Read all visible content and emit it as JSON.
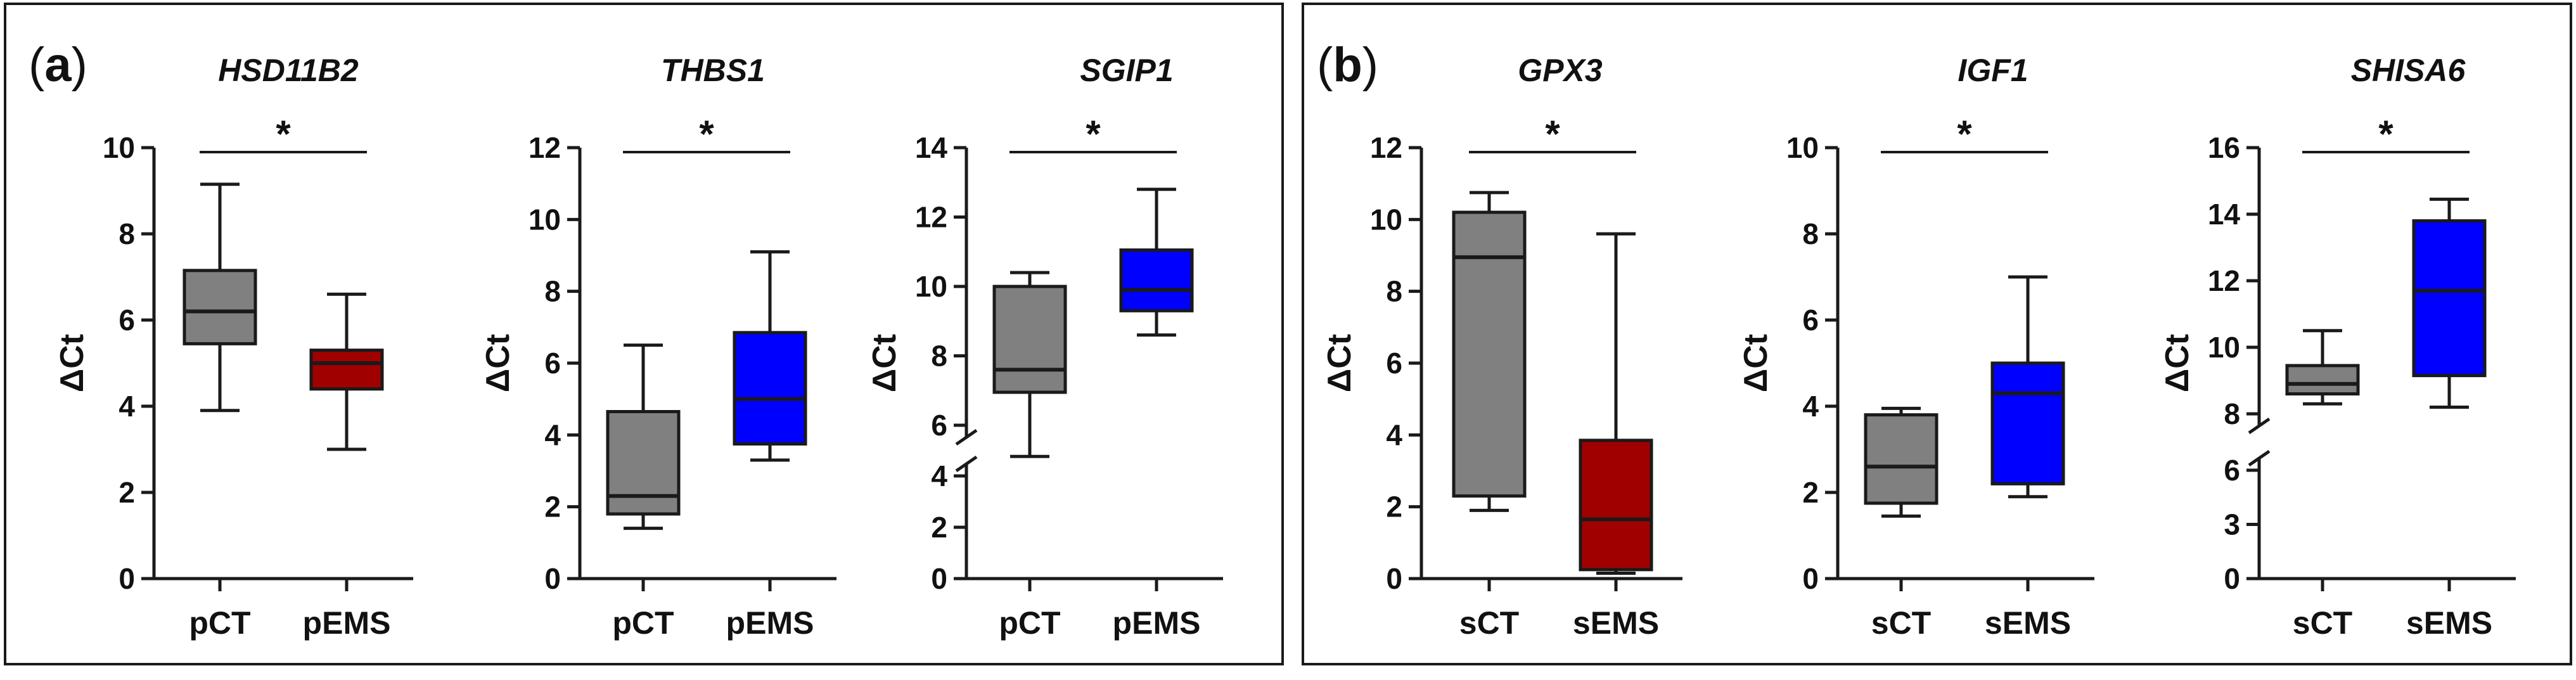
{
  "colors": {
    "control": "#808080",
    "pEMS": "#A00000",
    "sEMS": "#0000FF",
    "stroke": "#1a1a1a"
  },
  "panels": [
    {
      "label": "(a)",
      "bracket_left": "(",
      "letter": "a",
      "bracket_right": ")"
    },
    {
      "label": "(b)",
      "bracket_left": "(",
      "letter": "b",
      "bracket_right": ")"
    }
  ],
  "chart_data": [
    {
      "type": "box",
      "title": "HSD11B2",
      "ylabel": "ΔCt",
      "categories": [
        "pCT",
        "pEMS"
      ],
      "ylim": [
        0,
        10
      ],
      "yticks": [
        0,
        2,
        4,
        6,
        8,
        10
      ],
      "axis_break": false,
      "boxes": [
        {
          "name": "pCT",
          "color": "#808080",
          "min": 3.9,
          "q1": 5.45,
          "median": 6.2,
          "q3": 7.15,
          "max": 9.15
        },
        {
          "name": "pEMS",
          "color": "#A00000",
          "min": 3.0,
          "q1": 4.4,
          "median": 5.0,
          "q3": 5.3,
          "max": 6.6
        }
      ],
      "significance": "*"
    },
    {
      "type": "box",
      "title": "THBS1",
      "ylabel": "ΔCt",
      "categories": [
        "pCT",
        "pEMS"
      ],
      "ylim": [
        0,
        12
      ],
      "yticks": [
        0,
        2,
        4,
        6,
        8,
        10,
        12
      ],
      "axis_break": false,
      "boxes": [
        {
          "name": "pCT",
          "color": "#808080",
          "min": 1.4,
          "q1": 1.8,
          "median": 2.3,
          "q3": 4.65,
          "max": 6.5
        },
        {
          "name": "pEMS",
          "color": "#0000FF",
          "min": 3.3,
          "q1": 3.75,
          "median": 5.0,
          "q3": 6.85,
          "max": 9.1
        }
      ],
      "significance": "*"
    },
    {
      "type": "box",
      "title": "SGIP1",
      "ylabel": "ΔCt",
      "categories": [
        "pCT",
        "pEMS"
      ],
      "ylim": [
        0,
        14
      ],
      "yticks": [
        0,
        2,
        4,
        6,
        8,
        10,
        12,
        14
      ],
      "axis_break": true,
      "boxes": [
        {
          "name": "pCT",
          "color": "#808080",
          "min": 5.1,
          "q1": 6.95,
          "median": 7.6,
          "q3": 10.0,
          "max": 10.4
        },
        {
          "name": "pEMS",
          "color": "#0000FF",
          "min": 8.6,
          "q1": 9.3,
          "median": 9.9,
          "q3": 11.05,
          "max": 12.8
        }
      ],
      "significance": "*"
    },
    {
      "type": "box",
      "title": "GPX3",
      "ylabel": "ΔCt",
      "categories": [
        "sCT",
        "sEMS"
      ],
      "ylim": [
        0,
        12
      ],
      "yticks": [
        0,
        2,
        4,
        6,
        8,
        10,
        12
      ],
      "axis_break": false,
      "boxes": [
        {
          "name": "sCT",
          "color": "#808080",
          "min": 1.9,
          "q1": 2.3,
          "median": 8.95,
          "q3": 10.2,
          "max": 10.75
        },
        {
          "name": "sEMS",
          "color": "#A00000",
          "min": 0.15,
          "q1": 0.25,
          "median": 1.65,
          "q3": 3.85,
          "max": 9.6
        }
      ],
      "significance": "*"
    },
    {
      "type": "box",
      "title": "IGF1",
      "ylabel": "ΔCt",
      "categories": [
        "sCT",
        "sEMS"
      ],
      "ylim": [
        0,
        10
      ],
      "yticks": [
        0,
        2,
        4,
        6,
        8,
        10
      ],
      "axis_break": false,
      "boxes": [
        {
          "name": "sCT",
          "color": "#808080",
          "min": 1.45,
          "q1": 1.75,
          "median": 2.6,
          "q3": 3.8,
          "max": 3.95
        },
        {
          "name": "sEMS",
          "color": "#0000FF",
          "min": 1.9,
          "q1": 2.2,
          "median": 4.3,
          "q3": 5.0,
          "max": 7.0
        }
      ],
      "significance": "*"
    },
    {
      "type": "box",
      "title": "SHISA6",
      "ylabel": "ΔCt",
      "categories": [
        "sCT",
        "sEMS"
      ],
      "ylim": [
        0,
        16
      ],
      "yticks": [
        0,
        3,
        6,
        8,
        10,
        12,
        14,
        16
      ],
      "axis_break": true,
      "boxes": [
        {
          "name": "sCT",
          "color": "#808080",
          "min": 8.3,
          "q1": 8.6,
          "median": 8.9,
          "q3": 9.45,
          "max": 10.5
        },
        {
          "name": "sEMS",
          "color": "#0000FF",
          "min": 8.2,
          "q1": 9.15,
          "median": 11.7,
          "q3": 13.8,
          "max": 14.45
        }
      ],
      "significance": "*"
    }
  ]
}
